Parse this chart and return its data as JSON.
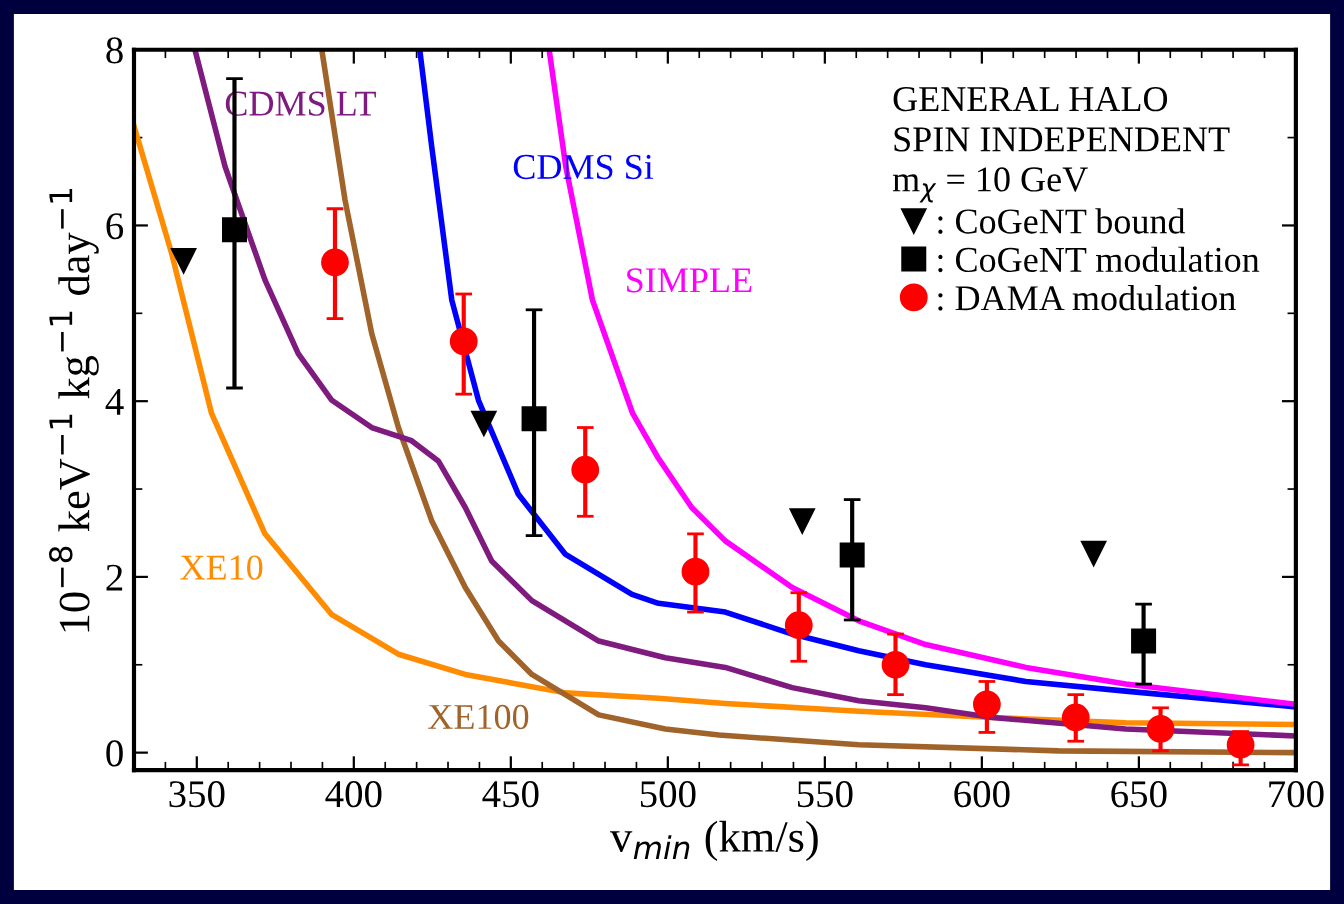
{
  "chart_data": {
    "type": "line",
    "xlabel": "v$_{min}$ (km/s)",
    "ylabel": "10$^{−8}$ keV$^{−1}$ kg$^{−1}$ day$^{−1}$",
    "legend_title": "GENERAL HALO\nSPIN INDEPENDENT\nm$_{χ}$ = 10 GeV",
    "legend": "top right",
    "xlim": [
      330,
      700
    ],
    "ylim": [
      -0.2,
      8
    ],
    "xticks": [
      350,
      400,
      450,
      500,
      550,
      600,
      650,
      700
    ],
    "yticks": [
      0,
      2,
      4,
      6,
      8
    ],
    "grid": false,
    "series": [
      {
        "name": "XE10",
        "color": "#ff8c00",
        "x": [
          330,
          342,
          354.7,
          371.7,
          393,
          414.2,
          435.5,
          467.4,
          497,
          518.3,
          560.8,
          603.3,
          645.8,
          700
        ],
        "values": [
          7.13,
          5.68,
          3.86,
          2.49,
          1.57,
          1.12,
          0.89,
          0.68,
          0.62,
          0.56,
          0.47,
          0.4,
          0.34,
          0.32
        ]
      },
      {
        "name": "XE100",
        "color": "#a0632a",
        "x": [
          389.8,
          397.2,
          405.7,
          414.2,
          424.8,
          435.5,
          446.1,
          456.7,
          478,
          499.2,
          516.3,
          560.8,
          624.5,
          700
        ],
        "values": [
          8,
          6.29,
          4.77,
          3.7,
          2.64,
          1.88,
          1.27,
          0.89,
          0.43,
          0.27,
          0.2,
          0.09,
          0.02,
          0.0
        ]
      },
      {
        "name": "CDMS LT",
        "color": "#7f1a7f",
        "x": [
          349.4,
          359,
          371.7,
          382.3,
          393,
          405.7,
          418.4,
          426.9,
          435.5,
          443.9,
          456.7,
          478,
          499.2,
          518.3,
          539.6,
          560.8,
          582.1,
          603.3,
          645.8,
          700
        ],
        "values": [
          8,
          6.67,
          5.38,
          4.54,
          4.01,
          3.7,
          3.55,
          3.32,
          2.79,
          2.18,
          1.73,
          1.27,
          1.08,
          0.97,
          0.74,
          0.59,
          0.51,
          0.4,
          0.27,
          0.19
        ]
      },
      {
        "name": "CDMS Si",
        "color": "#0000ff",
        "x": [
          421,
          424.8,
          431.2,
          439.7,
          452.4,
          467.3,
          488.6,
          497,
          518.3,
          539.6,
          560.8,
          582.1,
          614,
          645.8,
          700
        ],
        "values": [
          8,
          6.9,
          5.15,
          4.01,
          2.94,
          2.26,
          1.8,
          1.7,
          1.6,
          1.35,
          1.16,
          1.0,
          0.81,
          0.7,
          0.52
        ]
      },
      {
        "name": "SIMPLE",
        "color": "#ff00ff",
        "x": [
          462.2,
          467.5,
          476,
          488.8,
          497,
          507.6,
          518.3,
          539.6,
          560.8,
          582.1,
          614,
          645.8,
          700
        ],
        "values": [
          8,
          6.67,
          5.15,
          3.86,
          3.35,
          2.79,
          2.41,
          1.88,
          1.5,
          1.23,
          0.97,
          0.78,
          0.55
        ]
      },
      {
        "name": ": CoGeNT bound",
        "type": "scatter",
        "marker": "triangle_down",
        "color": "#000000",
        "x": [
          345.8,
          441.4,
          542.8,
          635.6
        ],
        "values": [
          5.6,
          3.75,
          2.64,
          2.27
        ]
      },
      {
        "name": ": CoGeNT modulation",
        "type": "scatter",
        "marker": "square",
        "color": "#000000",
        "x": [
          362,
          457.4,
          558.7,
          651.5
        ],
        "values": [
          5.95,
          3.8,
          2.25,
          1.27
        ],
        "errors": [
          [
            4.15,
            7.67
          ],
          [
            2.47,
            5.04
          ],
          [
            1.51,
            2.88
          ],
          [
            0.78,
            1.69
          ]
        ]
      },
      {
        "name": ": DAMA modulation",
        "type": "scatter",
        "marker": "circle",
        "color": "#ff0000",
        "x": [
          394,
          435,
          473.7,
          508.8,
          541.7,
          572.5,
          601.6,
          629.9,
          656.9,
          682.4
        ],
        "values": [
          5.58,
          4.68,
          3.22,
          2.06,
          1.45,
          1.0,
          0.55,
          0.4,
          0.27,
          0.09
        ],
        "errors": [
          [
            4.94,
            6.19
          ],
          [
            4.08,
            5.22
          ],
          [
            2.69,
            3.7
          ],
          [
            1.6,
            2.49
          ],
          [
            1.04,
            1.82
          ],
          [
            0.66,
            1.35
          ],
          [
            0.23,
            0.81
          ],
          [
            0.13,
            0.66
          ],
          [
            0.02,
            0.51
          ],
          [
            -0.14,
            0.24
          ]
        ]
      }
    ]
  }
}
